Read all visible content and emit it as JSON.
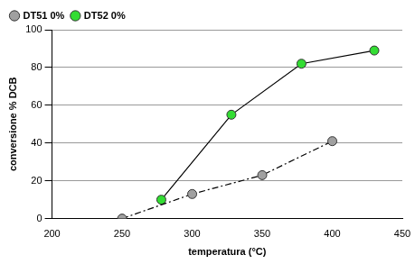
{
  "chart_data": {
    "type": "line",
    "x_label": "temperatura (°C)",
    "y_label": "conversione % DCB",
    "series": [
      {
        "name": "DT51 0%",
        "color": "#a0a0a0",
        "marker": "circle",
        "line_style": "dashdot",
        "x": [
          250,
          300,
          350,
          400
        ],
        "values": [
          0,
          13,
          23,
          41
        ]
      },
      {
        "name": "DT52 0%",
        "color": "#33dd33",
        "marker": "circle",
        "line_style": "solid",
        "x": [
          278,
          328,
          378,
          430
        ],
        "values": [
          10,
          55,
          82,
          89
        ]
      }
    ],
    "xlim": [
      200,
      450
    ],
    "xticks": [
      200,
      250,
      300,
      350,
      400,
      450
    ],
    "ylim": [
      0,
      100
    ],
    "yticks": [
      0,
      20,
      40,
      60,
      80,
      100
    ],
    "grid": "y",
    "legend": "top-left"
  }
}
